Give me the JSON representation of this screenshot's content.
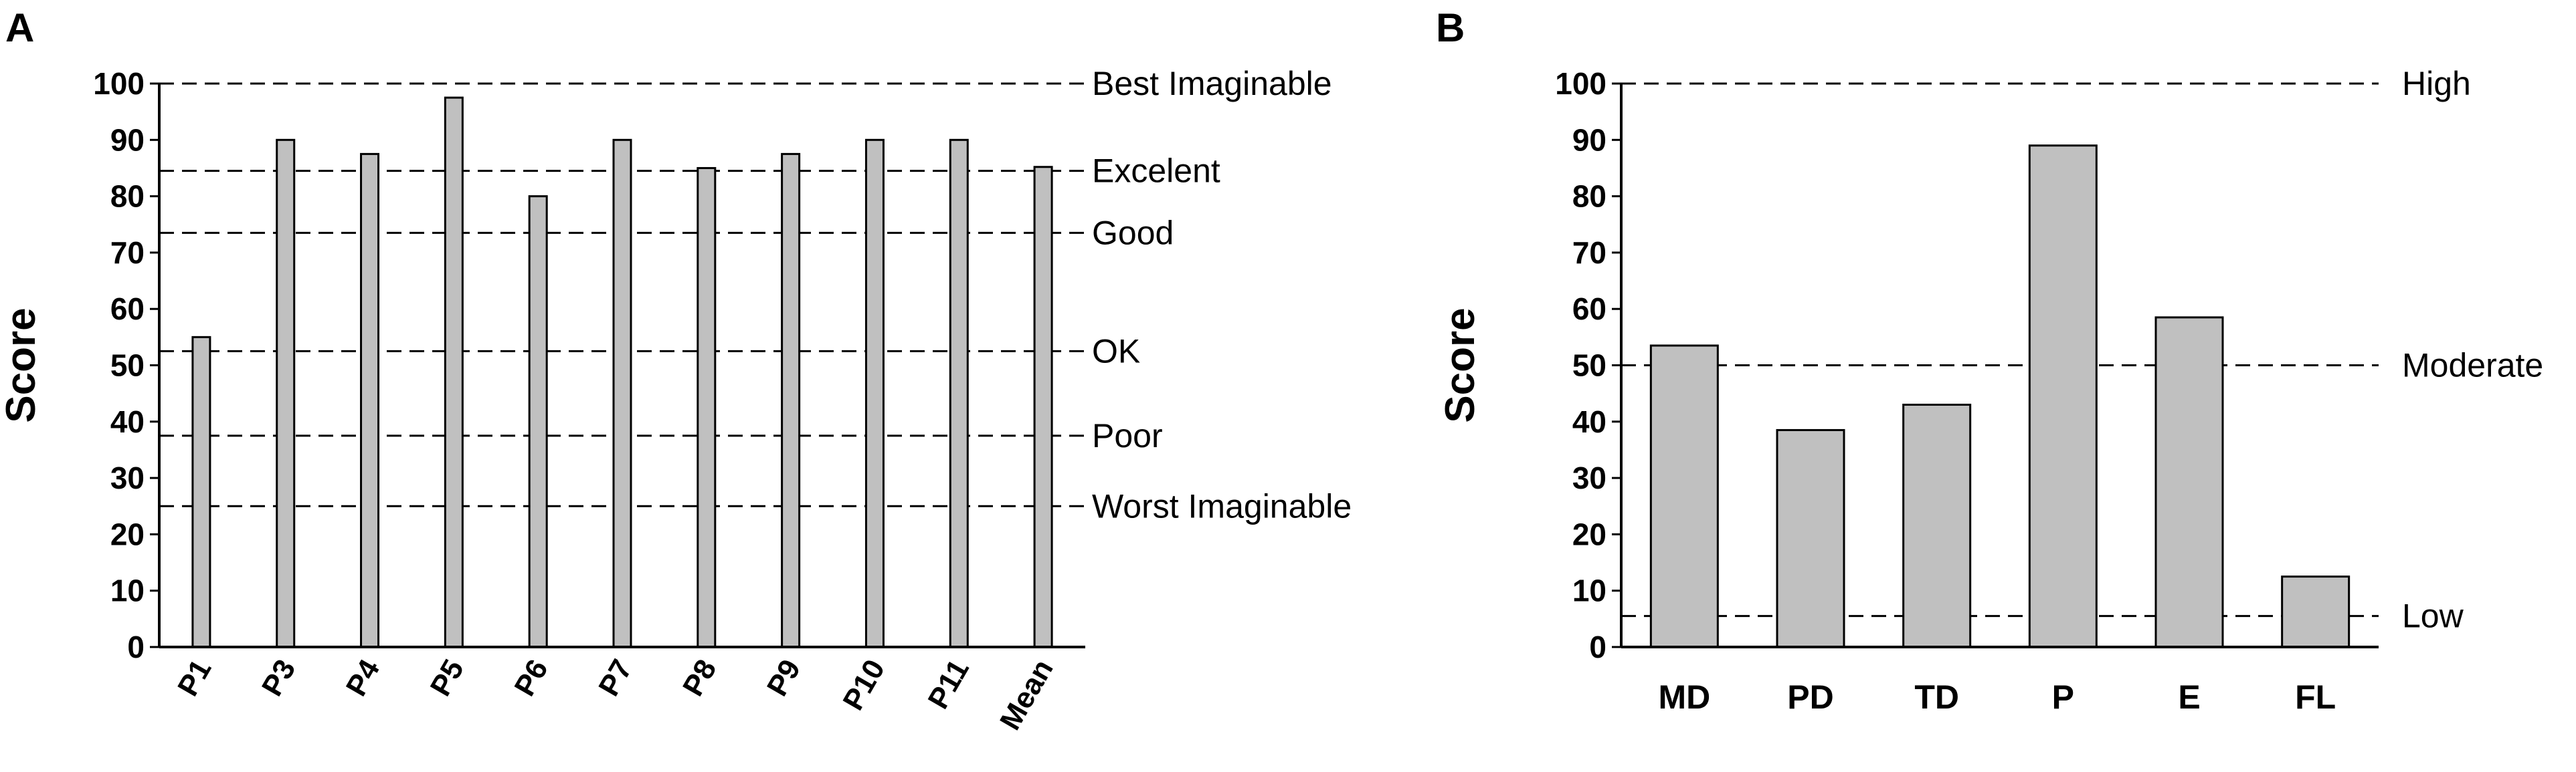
{
  "chart_data": [
    {
      "panel_label": "A",
      "type": "bar",
      "ylabel": "Score",
      "ylim": [
        0,
        100
      ],
      "yticks": [
        0,
        10,
        20,
        30,
        40,
        50,
        60,
        70,
        80,
        90,
        100
      ],
      "categories": [
        "P1",
        "P3",
        "P4",
        "P5",
        "P6",
        "P7",
        "P8",
        "P9",
        "P10",
        "P11",
        "Mean"
      ],
      "values": [
        55,
        90,
        87.5,
        97.5,
        80,
        90,
        85,
        87.5,
        90,
        90,
        85.2
      ],
      "bar_color": "#c0c0c0",
      "reference_lines": [
        {
          "label": "Best Imaginable",
          "value": 100
        },
        {
          "label": "Excelent",
          "value": 84.5
        },
        {
          "label": "Good",
          "value": 73.5
        },
        {
          "label": "OK",
          "value": 52.5
        },
        {
          "label": "Poor",
          "value": 37.5
        },
        {
          "label": "Worst Imaginable",
          "value": 25
        }
      ],
      "grid": false
    },
    {
      "panel_label": "B",
      "type": "bar",
      "ylabel": "Score",
      "ylim": [
        0,
        100
      ],
      "yticks": [
        0,
        10,
        20,
        30,
        40,
        50,
        60,
        70,
        80,
        90,
        100
      ],
      "categories": [
        "MD",
        "PD",
        "TD",
        "P",
        "E",
        "FL"
      ],
      "values": [
        53.5,
        38.5,
        43,
        89,
        58.5,
        12.5
      ],
      "bar_color": "#c0c0c0",
      "reference_lines": [
        {
          "label": "High",
          "value": 100
        },
        {
          "label": "Moderate",
          "value": 50
        },
        {
          "label": "Low",
          "value": 5.5
        }
      ],
      "grid": false
    }
  ]
}
